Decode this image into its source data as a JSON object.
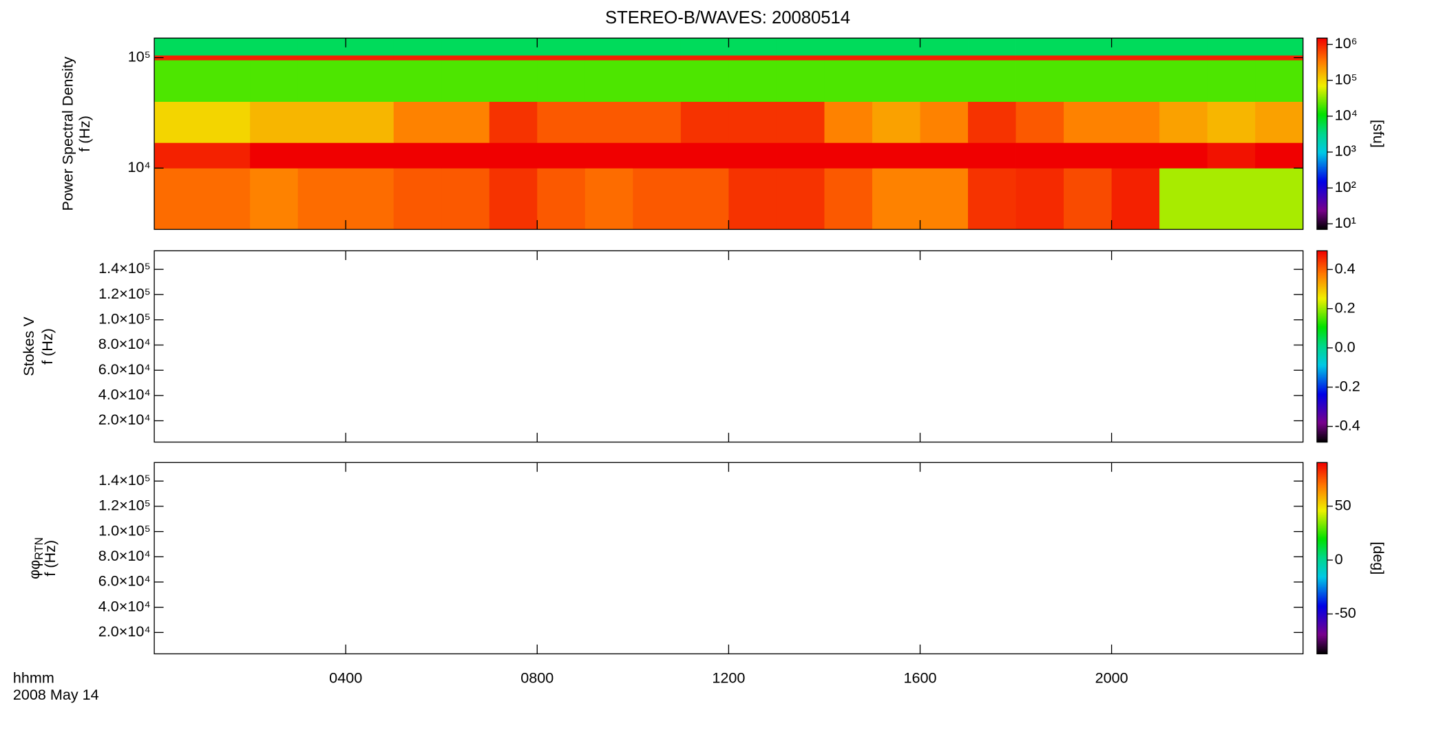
{
  "chart_data": [
    {
      "type": "heatmap",
      "title": "STEREO-B/WAVES: 20080514",
      "ylabel": "Power Spectral Density",
      "ylabel2": "f (Hz)",
      "ylog": true,
      "ylim": [
        2790,
        150000
      ],
      "yticks": [
        {
          "value": 10000,
          "label": "10⁴"
        },
        {
          "value": 100000,
          "label": "10⁵"
        }
      ],
      "time_bins": [
        0,
        1,
        2,
        3,
        4,
        5,
        6,
        7,
        8,
        9,
        10,
        11,
        12,
        13,
        14,
        15,
        16,
        17,
        18,
        19,
        20,
        21,
        22,
        23,
        24
      ],
      "freq_bins": [
        2790,
        10000,
        17000,
        40000,
        95000,
        105000,
        150000
      ],
      "values": [
        [
          400000,
          400000,
          300000,
          400000,
          400000,
          500000,
          500000,
          800000,
          500000,
          400000,
          500000,
          500000,
          800000,
          800000,
          500000,
          300000,
          300000,
          800000,
          900000,
          600000,
          1000000,
          40000,
          40000,
          40000
        ],
        [
          1000000,
          1000000,
          1500000,
          1500000,
          1500000,
          1500000,
          1500000,
          1500000,
          1500000,
          1500000,
          1500000,
          1500000,
          1500000,
          1500000,
          1500000,
          1500000,
          1500000,
          1500000,
          1500000,
          1500000,
          1500000,
          1500000,
          1200000,
          1500000
        ],
        [
          100000,
          100000,
          150000,
          150000,
          150000,
          300000,
          300000,
          800000,
          500000,
          500000,
          500000,
          800000,
          800000,
          800000,
          300000,
          200000,
          300000,
          800000,
          500000,
          300000,
          300000,
          200000,
          150000,
          200000
        ],
        [
          20000,
          20000,
          20000,
          20000,
          20000,
          20000,
          20000,
          20000,
          20000,
          20000,
          20000,
          20000,
          20000,
          20000,
          20000,
          20000,
          20000,
          20000,
          20000,
          20000,
          20000,
          20000,
          20000,
          20000
        ],
        [
          1000000,
          1000000,
          1000000,
          1000000,
          1000000,
          1000000,
          1000000,
          1000000,
          1000000,
          1000000,
          1000000,
          1000000,
          1000000,
          1000000,
          1000000,
          1000000,
          1000000,
          1000000,
          1000000,
          1000000,
          1000000,
          1000000,
          1000000,
          1000000
        ],
        [
          5000,
          5000,
          5000,
          5000,
          5000,
          5000,
          5000,
          5000,
          5000,
          5000,
          5000,
          5000,
          5000,
          5000,
          5000,
          5000,
          5000,
          5000,
          5000,
          5000,
          5000,
          5000,
          5000,
          5000
        ]
      ],
      "clog": true,
      "clim": [
        7,
        1500000
      ],
      "cticks": [
        {
          "value": 10,
          "label": "10¹"
        },
        {
          "value": 100,
          "label": "10²"
        },
        {
          "value": 1000,
          "label": "10³"
        },
        {
          "value": 10000,
          "label": "10⁴"
        },
        {
          "value": 100000,
          "label": "10⁵"
        },
        {
          "value": 1000000,
          "label": "10⁶"
        }
      ],
      "clabel": "[sfu]"
    },
    {
      "type": "heatmap",
      "ylabel": "Stokes V",
      "ylabel2": "f (Hz)",
      "ylog": false,
      "ylim": [
        3070,
        154700
      ],
      "yticks": [
        {
          "value": 20000,
          "label": "2.0×10⁴"
        },
        {
          "value": 40000,
          "label": "4.0×10⁴"
        },
        {
          "value": 60000,
          "label": "6.0×10⁴"
        },
        {
          "value": 80000,
          "label": "8.0×10⁴"
        },
        {
          "value": 100000,
          "label": "1.0×10⁵"
        },
        {
          "value": 120000,
          "label": "1.2×10⁵"
        },
        {
          "value": 140000,
          "label": "1.4×10⁵"
        }
      ],
      "clog": false,
      "clim": [
        -0.48,
        0.495
      ],
      "cticks": [
        -0.4,
        -0.2,
        {
          "value": 0,
          "label": "0.0"
        },
        0.2,
        0.4
      ]
    },
    {
      "type": "heatmap",
      "ylabel": "φ",
      "ylabel_sub": "RTN",
      "ylabel2": "f (Hz)",
      "ylog": false,
      "ylim": [
        3070,
        154700
      ],
      "yticks": [
        {
          "value": 20000,
          "label": "2.0×10⁴"
        },
        {
          "value": 40000,
          "label": "4.0×10⁴"
        },
        {
          "value": 60000,
          "label": "6.0×10⁴"
        },
        {
          "value": 80000,
          "label": "8.0×10⁴"
        },
        {
          "value": 100000,
          "label": "1.0×10⁵"
        },
        {
          "value": 120000,
          "label": "1.2×10⁵"
        },
        {
          "value": 140000,
          "label": "1.4×10⁵"
        }
      ],
      "clog": false,
      "clim": [
        -87,
        90.5
      ],
      "cticks": [
        -50,
        0,
        50
      ],
      "clabel": "[deg]",
      "xlim": [
        0,
        24
      ],
      "xticks": [
        {
          "value": 4,
          "label": "0400"
        },
        {
          "value": 8,
          "label": "0800"
        },
        {
          "value": 12,
          "label": "1200"
        },
        {
          "value": 16,
          "label": "1600"
        },
        {
          "value": 20,
          "label": "2000"
        }
      ],
      "xlabel": "hhmm",
      "xlabel2": "2008 May 14"
    }
  ]
}
